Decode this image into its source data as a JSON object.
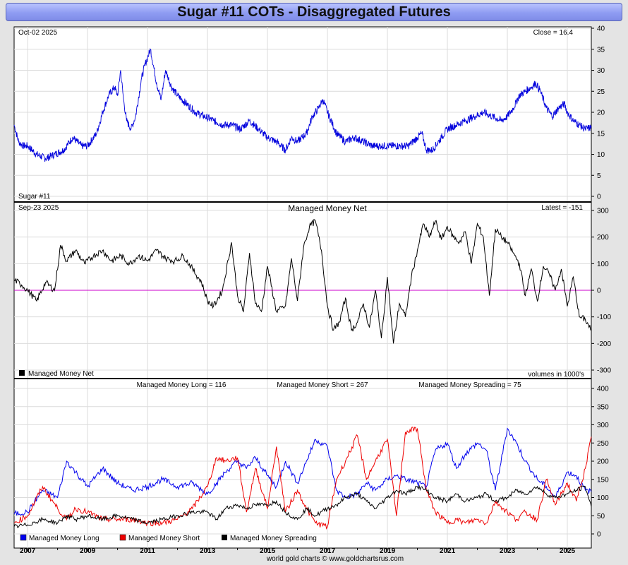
{
  "title": "Sugar #11 COTs - Disaggregated Futures",
  "footer": "world gold charts © www.goldchartsrus.com",
  "colors": {
    "price": "#0000dd",
    "net": "#000000",
    "zero": "#cc00cc",
    "long": "#0000ee",
    "short": "#ee0000",
    "spread": "#000000"
  },
  "chart_data": [
    {
      "type": "line",
      "name": "price",
      "date_label": "Oct-02  2025",
      "latest_label": "Close = 16.4",
      "legend": "Sugar #11",
      "ylim": [
        0,
        40
      ],
      "yticks": [
        0,
        5,
        10,
        15,
        20,
        25,
        30,
        35,
        40
      ],
      "xlim": [
        2006.55,
        2025.8
      ],
      "series": [
        {
          "name": "Sugar #11",
          "x": [
            2006.55,
            2006.7,
            2006.85,
            2007.0,
            2007.3,
            2007.6,
            2007.9,
            2008.2,
            2008.5,
            2008.8,
            2009.0,
            2009.3,
            2009.5,
            2009.7,
            2009.9,
            2010.0,
            2010.1,
            2010.2,
            2010.3,
            2010.45,
            2010.6,
            2010.8,
            2010.9,
            2011.0,
            2011.1,
            2011.3,
            2011.45,
            2011.6,
            2011.8,
            2012.0,
            2012.3,
            2012.6,
            2012.9,
            2013.2,
            2013.5,
            2013.8,
            2014.1,
            2014.4,
            2014.7,
            2015.0,
            2015.3,
            2015.6,
            2015.8,
            2016.0,
            2016.3,
            2016.5,
            2016.7,
            2016.85,
            2017.0,
            2017.3,
            2017.6,
            2017.9,
            2018.2,
            2018.5,
            2018.8,
            2019.1,
            2019.4,
            2019.7,
            2020.0,
            2020.15,
            2020.3,
            2020.5,
            2020.8,
            2021.0,
            2021.3,
            2021.6,
            2021.9,
            2022.2,
            2022.5,
            2022.8,
            2023.0,
            2023.2,
            2023.4,
            2023.6,
            2023.8,
            2023.95,
            2024.1,
            2024.3,
            2024.5,
            2024.7,
            2024.9,
            2025.0,
            2025.2,
            2025.4,
            2025.6,
            2025.8
          ],
          "values": [
            17,
            13,
            12,
            12,
            10,
            9,
            10,
            11,
            14,
            12,
            12,
            15,
            20,
            24,
            26,
            24,
            30,
            23,
            18,
            16,
            19,
            28,
            31,
            33,
            35,
            27,
            23,
            30,
            26,
            24,
            22,
            20,
            19,
            18,
            17,
            17,
            16,
            18,
            16,
            14,
            13,
            11,
            14,
            13,
            15,
            19,
            21,
            23,
            20,
            15,
            13,
            14,
            13,
            12,
            12,
            12,
            12,
            12,
            14,
            15,
            11,
            11,
            14,
            16,
            17,
            18,
            19,
            20,
            19,
            18,
            19,
            21,
            24,
            25,
            26,
            27,
            25,
            21,
            19,
            21,
            22,
            20,
            18,
            17,
            16,
            16.4
          ]
        }
      ]
    },
    {
      "type": "line",
      "name": "managed-money-net",
      "date_label": "Sep-23  2025",
      "title": "Managed Money Net",
      "latest_label": "Latest = -151",
      "legend": "Managed Money Net",
      "note": "volumes in 1000's",
      "ylim": [
        -300,
        300
      ],
      "yticks": [
        -300,
        -200,
        -100,
        0,
        100,
        200,
        300
      ],
      "xlim": [
        2006.55,
        2025.8
      ],
      "series": [
        {
          "name": "Managed Money Net",
          "x": [
            2006.55,
            2006.8,
            2007.0,
            2007.3,
            2007.6,
            2007.9,
            2008.1,
            2008.3,
            2008.6,
            2008.9,
            2009.2,
            2009.5,
            2009.8,
            2010.1,
            2010.4,
            2010.7,
            2011.0,
            2011.3,
            2011.6,
            2011.9,
            2012.2,
            2012.5,
            2012.8,
            2013.0,
            2013.2,
            2013.5,
            2013.8,
            2014.0,
            2014.2,
            2014.4,
            2014.6,
            2014.8,
            2015.0,
            2015.3,
            2015.6,
            2015.8,
            2016.0,
            2016.2,
            2016.4,
            2016.6,
            2016.8,
            2017.0,
            2017.2,
            2017.4,
            2017.6,
            2017.8,
            2018.0,
            2018.2,
            2018.4,
            2018.6,
            2018.8,
            2019.0,
            2019.2,
            2019.4,
            2019.6,
            2019.8,
            2020.0,
            2020.2,
            2020.4,
            2020.6,
            2020.8,
            2021.0,
            2021.2,
            2021.4,
            2021.6,
            2021.8,
            2022.0,
            2022.2,
            2022.4,
            2022.6,
            2022.8,
            2023.0,
            2023.2,
            2023.4,
            2023.6,
            2023.8,
            2024.0,
            2024.2,
            2024.4,
            2024.6,
            2024.8,
            2025.0,
            2025.2,
            2025.4,
            2025.6,
            2025.8
          ],
          "values": [
            40,
            20,
            0,
            -40,
            30,
            0,
            170,
            110,
            150,
            100,
            130,
            150,
            110,
            130,
            100,
            130,
            110,
            150,
            120,
            110,
            130,
            80,
            30,
            -40,
            -60,
            0,
            180,
            -20,
            -80,
            140,
            -50,
            -80,
            90,
            -80,
            -60,
            120,
            -40,
            160,
            240,
            260,
            150,
            -60,
            -150,
            -120,
            -30,
            -150,
            -120,
            -50,
            -140,
            0,
            -180,
            50,
            -200,
            -50,
            -100,
            50,
            150,
            250,
            200,
            260,
            190,
            240,
            200,
            180,
            220,
            100,
            250,
            200,
            -20,
            230,
            200,
            180,
            140,
            100,
            -20,
            80,
            -40,
            90,
            60,
            0,
            80,
            -60,
            50,
            -100,
            -110,
            -151
          ]
        }
      ]
    },
    {
      "type": "line",
      "name": "managed-money-positions",
      "ylim": [
        0,
        400
      ],
      "yticks": [
        0,
        50,
        100,
        150,
        200,
        250,
        300,
        350,
        400
      ],
      "xlim": [
        2006.55,
        2025.8
      ],
      "xticks": [
        "2007",
        "2009",
        "2011",
        "2013",
        "2015",
        "2017",
        "2019",
        "2021",
        "2023",
        "2025"
      ],
      "xtick_values": [
        2007,
        2009,
        2011,
        2013,
        2015,
        2017,
        2019,
        2021,
        2023,
        2025
      ],
      "header_labels": [
        "Managed Money Long = 116",
        "Managed Money Short = 267",
        "Managed Money Spreading = 75"
      ],
      "legend": [
        "Managed Money Long",
        "Managed Money Short",
        "Managed Money Spreading"
      ],
      "x": [
        2006.55,
        2007.0,
        2007.5,
        2008.0,
        2008.3,
        2008.6,
        2009.0,
        2009.5,
        2010.0,
        2010.5,
        2011.0,
        2011.5,
        2012.0,
        2012.5,
        2013.0,
        2013.3,
        2013.6,
        2014.0,
        2014.3,
        2014.6,
        2015.0,
        2015.3,
        2015.6,
        2016.0,
        2016.3,
        2016.6,
        2017.0,
        2017.3,
        2017.6,
        2018.0,
        2018.3,
        2018.6,
        2019.0,
        2019.3,
        2019.6,
        2020.0,
        2020.3,
        2020.6,
        2021.0,
        2021.3,
        2021.6,
        2022.0,
        2022.3,
        2022.6,
        2023.0,
        2023.3,
        2023.6,
        2024.0,
        2024.3,
        2024.6,
        2025.0,
        2025.3,
        2025.6,
        2025.8
      ],
      "series": [
        {
          "name": "Managed Money Long",
          "values": [
            55,
            60,
            120,
            100,
            200,
            170,
            130,
            180,
            140,
            120,
            130,
            150,
            130,
            140,
            110,
            140,
            170,
            200,
            180,
            210,
            160,
            130,
            200,
            140,
            200,
            260,
            240,
            120,
            100,
            110,
            140,
            120,
            150,
            160,
            150,
            140,
            130,
            230,
            250,
            180,
            220,
            250,
            230,
            120,
            290,
            250,
            200,
            150,
            130,
            100,
            170,
            160,
            120,
            116
          ]
        },
        {
          "name": "Managed Money Short",
          "values": [
            30,
            50,
            130,
            70,
            40,
            70,
            60,
            40,
            40,
            40,
            30,
            30,
            40,
            70,
            130,
            210,
            200,
            210,
            60,
            180,
            70,
            240,
            60,
            120,
            70,
            30,
            20,
            150,
            200,
            270,
            150,
            200,
            260,
            50,
            280,
            290,
            120,
            60,
            30,
            40,
            30,
            40,
            30,
            90,
            60,
            40,
            60,
            40,
            150,
            80,
            140,
            90,
            180,
            267
          ]
        },
        {
          "name": "Managed Money Spreading",
          "values": [
            20,
            25,
            40,
            30,
            50,
            40,
            50,
            40,
            50,
            40,
            30,
            40,
            50,
            60,
            60,
            40,
            70,
            80,
            70,
            80,
            80,
            90,
            60,
            40,
            70,
            50,
            70,
            80,
            100,
            110,
            90,
            70,
            100,
            120,
            110,
            130,
            120,
            100,
            90,
            110,
            90,
            100,
            110,
            90,
            100,
            120,
            110,
            130,
            110,
            100,
            110,
            120,
            130,
            75
          ]
        }
      ]
    }
  ]
}
